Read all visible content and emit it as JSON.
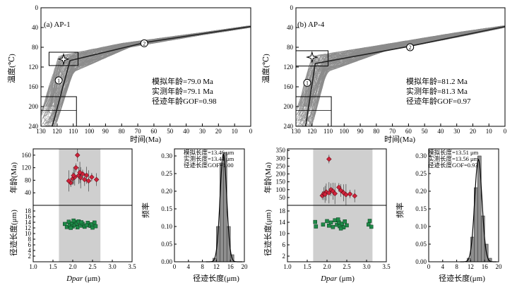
{
  "chart_data": [
    {
      "id": "thermal-ap1",
      "type": "line",
      "title": "(a) AP-1",
      "xlabel": "时间(Ma)",
      "ylabel": "温度(℃)",
      "xlim": [
        130,
        0
      ],
      "ylim": [
        0,
        240
      ],
      "x_ticks": [
        130,
        120,
        110,
        100,
        90,
        80,
        70,
        60,
        50,
        40,
        30,
        20,
        10,
        0
      ],
      "y_ticks": [
        0,
        40,
        80,
        120,
        160,
        200,
        240
      ],
      "best_fit_path": [
        [
          123,
          240
        ],
        [
          112,
          107
        ],
        [
          65,
          70
        ],
        [
          0,
          38
        ]
      ],
      "envelope_upper": [
        [
          130,
          210
        ],
        [
          119,
          98
        ],
        [
          80,
          72
        ],
        [
          30,
          50
        ],
        [
          0,
          36
        ]
      ],
      "envelope_lower": [
        [
          121,
          240
        ],
        [
          110,
          130
        ],
        [
          75,
          80
        ],
        [
          30,
          55
        ],
        [
          0,
          40
        ]
      ],
      "markers": [
        {
          "label": "1",
          "x": 119,
          "y": 147
        },
        {
          "label": "2",
          "x": 66,
          "y": 72
        }
      ],
      "constraint_boxes": [
        {
          "x": [
            125,
            107
          ],
          "y": [
            90,
            117
          ]
        },
        {
          "x": [
            130,
            108
          ],
          "y": [
            180,
            240
          ]
        }
      ],
      "star": {
        "x": 116,
        "y": 104
      },
      "annotations": [
        "模拟年龄=79.0 Ma",
        "实测年龄=79.1 Ma",
        "径迹年龄GOF=0.98"
      ]
    },
    {
      "id": "thermal-ap4",
      "type": "line",
      "title": "(b) AP-4",
      "xlabel": "时间(Ma)",
      "ylabel": "温度(℃)",
      "xlim": [
        130,
        0
      ],
      "ylim": [
        0,
        240
      ],
      "x_ticks": [
        130,
        120,
        110,
        100,
        90,
        80,
        70,
        60,
        50,
        40,
        30,
        20,
        10,
        0
      ],
      "y_ticks": [
        0,
        40,
        80,
        120,
        160,
        200,
        240
      ],
      "best_fit_path": [
        [
          124,
          240
        ],
        [
          118,
          113
        ],
        [
          61,
          79
        ],
        [
          0,
          38
        ]
      ],
      "envelope_upper": [
        [
          130,
          210
        ],
        [
          120,
          98
        ],
        [
          80,
          77
        ],
        [
          30,
          50
        ],
        [
          0,
          36
        ]
      ],
      "envelope_lower": [
        [
          120,
          240
        ],
        [
          111,
          130
        ],
        [
          75,
          88
        ],
        [
          30,
          60
        ],
        [
          0,
          40
        ]
      ],
      "markers": [
        {
          "label": "1",
          "x": 123,
          "y": 152
        },
        {
          "label": "2",
          "x": 59,
          "y": 80
        }
      ],
      "constraint_boxes": [
        {
          "x": [
            130,
            110
          ],
          "y": [
            87,
            118
          ]
        },
        {
          "x": [
            130,
            108
          ],
          "y": [
            180,
            240
          ]
        }
      ],
      "star": {
        "x": 120,
        "y": 100
      },
      "annotations": [
        "模拟年龄=81.2 Ma",
        "实测年龄=81.3 Ma",
        "径迹年龄GOF=0.97"
      ]
    },
    {
      "id": "dpar-ap1",
      "type": "scatter",
      "xlabel_italic": "Dpar",
      "xlabel_unit": " (μm)",
      "ylabel_top": "年龄(Ma)",
      "ylabel_bottom": "径迹长度(μm)",
      "xlim": [
        1.0,
        3.5
      ],
      "x_ticks": [
        "1.0",
        "1.5",
        "2.0",
        "2.5",
        "3.0",
        "3.5"
      ],
      "top_ylim": [
        0,
        180
      ],
      "top_ticks": [
        "40",
        "80",
        "120",
        "160"
      ],
      "bottom_ylim": [
        0,
        20
      ],
      "bottom_ticks": [
        "2",
        "4",
        "6",
        "8",
        "10",
        "12",
        "14",
        "16",
        "18"
      ],
      "shaded_range": [
        1.65,
        2.7
      ],
      "ages": [
        [
          1.95,
          72
        ],
        [
          2.0,
          85
        ],
        [
          2.05,
          90
        ],
        [
          1.9,
          78
        ],
        [
          2.08,
          120
        ],
        [
          2.12,
          160
        ],
        [
          2.15,
          95
        ],
        [
          2.2,
          88
        ],
        [
          2.25,
          100
        ],
        [
          2.3,
          82
        ],
        [
          2.35,
          96
        ],
        [
          2.4,
          78
        ],
        [
          2.48,
          90
        ],
        [
          2.6,
          82
        ],
        [
          2.02,
          95
        ],
        [
          2.18,
          105
        ]
      ],
      "lengths": [
        [
          1.8,
          13.4
        ],
        [
          1.85,
          12.3
        ],
        [
          1.9,
          14.2
        ],
        [
          1.92,
          12.9
        ],
        [
          1.98,
          13.6
        ],
        [
          2.0,
          12.5
        ],
        [
          2.05,
          14.1
        ],
        [
          2.05,
          13.0
        ],
        [
          2.1,
          13.6
        ],
        [
          2.12,
          12.2
        ],
        [
          2.15,
          14.3
        ],
        [
          2.2,
          12.8
        ],
        [
          2.25,
          13.5
        ],
        [
          2.3,
          12.4
        ],
        [
          2.38,
          13.8
        ],
        [
          2.45,
          12.7
        ],
        [
          2.48,
          13.3
        ],
        [
          2.5,
          12.1
        ],
        [
          2.55,
          13.9
        ],
        [
          2.58,
          12.6
        ],
        [
          1.95,
          12.0
        ],
        [
          2.02,
          14.6
        ],
        [
          2.22,
          14.0
        ],
        [
          2.35,
          12.9
        ]
      ]
    },
    {
      "id": "length-ap1",
      "type": "bar",
      "xlabel": "径迹长度(μm)",
      "ylabel": "频率",
      "xlim": [
        0,
        20
      ],
      "x_ticks": [
        "0",
        "4",
        "8",
        "12",
        "16",
        "20"
      ],
      "ylim": [
        0,
        0.32
      ],
      "y_ticks": [
        "0.00",
        "0.05",
        "0.10",
        "0.15",
        "0.20",
        "0.25",
        "0.30"
      ],
      "bins": [
        [
          11,
          12,
          0.01
        ],
        [
          12,
          13,
          0.1
        ],
        [
          13,
          14,
          0.28
        ],
        [
          14,
          15,
          0.31
        ],
        [
          15,
          16,
          0.1
        ],
        [
          16,
          17,
          0.02
        ]
      ],
      "curve_peak": 14.0,
      "curve_sigma": 0.95,
      "curve_height": 0.305,
      "annotations": [
        "模拟长度=13.46 μm",
        "实测长度=13.44 μm",
        "径迹长度GOF=1.00"
      ]
    },
    {
      "id": "dpar-ap4",
      "type": "scatter",
      "xlabel_italic": "Dpar",
      "xlabel_unit": " (μm)",
      "ylabel_top": "年龄(Ma)",
      "ylabel_bottom": "径迹长度(μm)",
      "xlim": [
        1.0,
        3.5
      ],
      "x_ticks": [
        "1.0",
        "1.5",
        "2.0",
        "2.5",
        "3.0",
        "3.5"
      ],
      "top_ylim": [
        0,
        360
      ],
      "top_ticks": [
        "50",
        "100",
        "150",
        "200",
        "250",
        "300",
        "350"
      ],
      "bottom_ylim": [
        0,
        20
      ],
      "bottom_ticks": [
        "2",
        "6",
        "10",
        "14",
        "18"
      ],
      "shaded_range": [
        1.65,
        3.15
      ],
      "ages": [
        [
          1.88,
          62
        ],
        [
          1.92,
          75
        ],
        [
          1.98,
          85
        ],
        [
          2.05,
          80
        ],
        [
          2.05,
          295
        ],
        [
          2.1,
          100
        ],
        [
          2.15,
          90
        ],
        [
          2.2,
          75
        ],
        [
          2.3,
          115
        ],
        [
          2.35,
          95
        ],
        [
          2.42,
          80
        ],
        [
          2.48,
          68
        ],
        [
          2.58,
          72
        ],
        [
          2.7,
          60
        ],
        [
          1.95,
          70
        ]
      ],
      "lengths": [
        [
          1.7,
          14.1
        ],
        [
          1.72,
          12.5
        ],
        [
          1.9,
          13.2
        ],
        [
          2.0,
          14.4
        ],
        [
          2.05,
          12.8
        ],
        [
          2.1,
          13.9
        ],
        [
          2.15,
          12.3
        ],
        [
          2.2,
          14.7
        ],
        [
          2.25,
          13.1
        ],
        [
          2.3,
          14.0
        ],
        [
          2.32,
          12.6
        ],
        [
          2.38,
          13.5
        ],
        [
          2.42,
          12.2
        ],
        [
          2.45,
          14.3
        ],
        [
          2.5,
          12.9
        ],
        [
          3.05,
          13.2
        ],
        [
          3.08,
          14.5
        ],
        [
          3.12,
          12.4
        ],
        [
          2.28,
          15.0
        ],
        [
          2.35,
          11.8
        ]
      ]
    },
    {
      "id": "length-ap4",
      "type": "bar",
      "xlabel": "径迹长度(μm)",
      "ylabel": "频率",
      "xlim": [
        0,
        20
      ],
      "x_ticks": [
        "0",
        "4",
        "8",
        "12",
        "16",
        "20"
      ],
      "ylim": [
        0,
        0.32
      ],
      "y_ticks": [
        "0.00",
        "0.05",
        "0.10",
        "0.15",
        "0.20",
        "0.25",
        "0.30"
      ],
      "bins": [
        [
          11,
          12,
          0.01
        ],
        [
          12,
          13,
          0.07
        ],
        [
          13,
          14,
          0.21
        ],
        [
          14,
          15,
          0.3
        ],
        [
          15,
          16,
          0.13
        ],
        [
          16,
          17,
          0.05
        ],
        [
          17,
          18,
          0.01
        ]
      ],
      "curve_peak": 14.2,
      "curve_sigma": 1.05,
      "curve_height": 0.29,
      "annotations": [
        "模拟长度=13.51 μm",
        "实测长度=13.56 μm",
        "径迹长度GOF=0.93"
      ]
    }
  ]
}
